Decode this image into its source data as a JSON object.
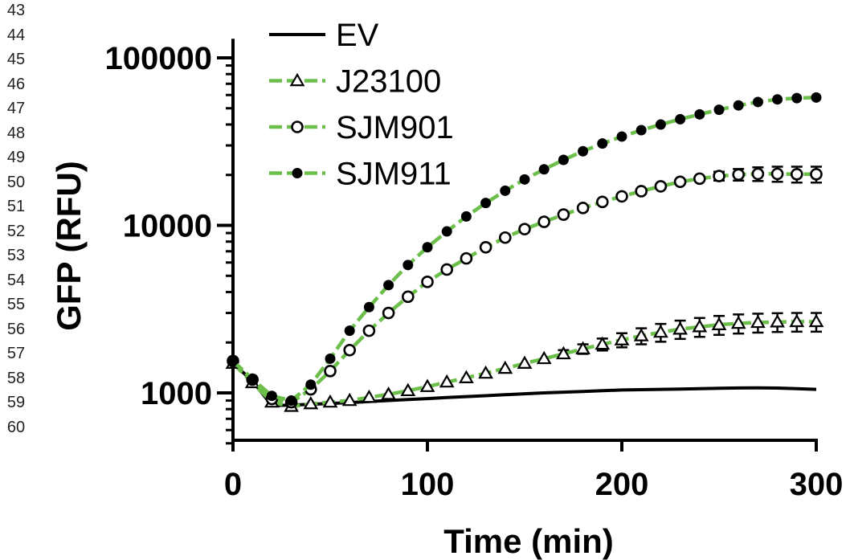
{
  "line_numbers": [
    "43",
    "44",
    "45",
    "46",
    "47",
    "48",
    "49",
    "50",
    "51",
    "52",
    "53",
    "54",
    "55",
    "56",
    "57",
    "58",
    "59",
    "60"
  ],
  "chart_data": {
    "type": "line",
    "title": "",
    "xlabel": "Time (min)",
    "ylabel": "GFP (RFU)",
    "x_scale": "linear",
    "y_scale": "log",
    "xlim": [
      0,
      300
    ],
    "ylim": [
      500,
      130000
    ],
    "x_ticks": [
      0,
      100,
      200,
      300
    ],
    "x_tick_labels": [
      "0",
      "100",
      "200",
      "300"
    ],
    "y_ticks": [
      1000,
      10000,
      100000
    ],
    "y_tick_labels": [
      "1000",
      "10000",
      "100000"
    ],
    "grid": false,
    "legend_position": "top-left",
    "colors": {
      "axis": "#000000",
      "ev": "#000000",
      "green": "#6cbf4a",
      "marker": "#000000"
    },
    "series": [
      {
        "name": "EV",
        "line": "solid",
        "color": "#000000",
        "marker": "none",
        "x": [
          0,
          10,
          20,
          30,
          40,
          50,
          60,
          70,
          80,
          90,
          100,
          110,
          120,
          130,
          140,
          150,
          160,
          170,
          180,
          190,
          200,
          210,
          220,
          230,
          240,
          250,
          260,
          270,
          280,
          290,
          300
        ],
        "y": [
          1500,
          1180,
          840,
          845,
          855,
          865,
          875,
          888,
          900,
          912,
          925,
          938,
          950,
          962,
          975,
          988,
          1000,
          1010,
          1020,
          1030,
          1040,
          1045,
          1050,
          1055,
          1060,
          1065,
          1070,
          1072,
          1068,
          1060,
          1050
        ]
      },
      {
        "name": "J23100",
        "line": "dashed",
        "color": "#6cbf4a",
        "marker": "open-triangle",
        "x": [
          0,
          10,
          20,
          30,
          40,
          50,
          60,
          70,
          80,
          90,
          100,
          110,
          120,
          130,
          140,
          150,
          160,
          170,
          180,
          190,
          200,
          210,
          220,
          230,
          240,
          250,
          260,
          270,
          280,
          290,
          300
        ],
        "y": [
          1500,
          1150,
          880,
          830,
          860,
          880,
          900,
          940,
          980,
          1030,
          1090,
          1160,
          1230,
          1310,
          1400,
          1500,
          1600,
          1710,
          1830,
          1950,
          2070,
          2190,
          2300,
          2400,
          2480,
          2550,
          2600,
          2630,
          2650,
          2660,
          2660
        ],
        "error": [
          0,
          0,
          0,
          0,
          0,
          0,
          0,
          0,
          0,
          0,
          0,
          0,
          0,
          0,
          0,
          0,
          0,
          90,
          120,
          160,
          200,
          240,
          280,
          300,
          320,
          330,
          340,
          340,
          340,
          340,
          340
        ]
      },
      {
        "name": "SJM901",
        "line": "dashed",
        "color": "#6cbf4a",
        "marker": "open-circle",
        "x": [
          0,
          10,
          20,
          30,
          40,
          50,
          60,
          70,
          80,
          90,
          100,
          110,
          120,
          130,
          140,
          150,
          160,
          170,
          180,
          190,
          200,
          210,
          220,
          230,
          240,
          250,
          260,
          270,
          280,
          290,
          300
        ],
        "y": [
          1550,
          1200,
          920,
          880,
          1050,
          1350,
          1800,
          2350,
          3000,
          3750,
          4600,
          5450,
          6350,
          7400,
          8450,
          9500,
          10500,
          11600,
          12700,
          13800,
          14900,
          16000,
          17100,
          18200,
          19000,
          19700,
          20100,
          20300,
          20300,
          20200,
          20200
        ],
        "error": [
          0,
          0,
          0,
          0,
          0,
          0,
          0,
          0,
          0,
          0,
          0,
          0,
          0,
          0,
          0,
          0,
          0,
          0,
          0,
          0,
          0,
          0,
          0,
          0,
          0,
          1200,
          1600,
          1900,
          2100,
          2200,
          2200
        ]
      },
      {
        "name": "SJM911",
        "line": "dashed",
        "color": "#6cbf4a",
        "marker": "filled-circle",
        "x": [
          0,
          10,
          20,
          30,
          40,
          50,
          60,
          70,
          80,
          90,
          100,
          110,
          120,
          130,
          140,
          150,
          160,
          170,
          180,
          190,
          200,
          210,
          220,
          230,
          240,
          250,
          260,
          270,
          280,
          290,
          300
        ],
        "y": [
          1550,
          1210,
          960,
          900,
          1120,
          1600,
          2350,
          3250,
          4400,
          5800,
          7400,
          9200,
          11300,
          13600,
          16100,
          18800,
          21600,
          24600,
          27700,
          30800,
          33900,
          37000,
          40000,
          43000,
          46000,
          49000,
          52000,
          54500,
          56500,
          57500,
          58000
        ]
      }
    ]
  }
}
